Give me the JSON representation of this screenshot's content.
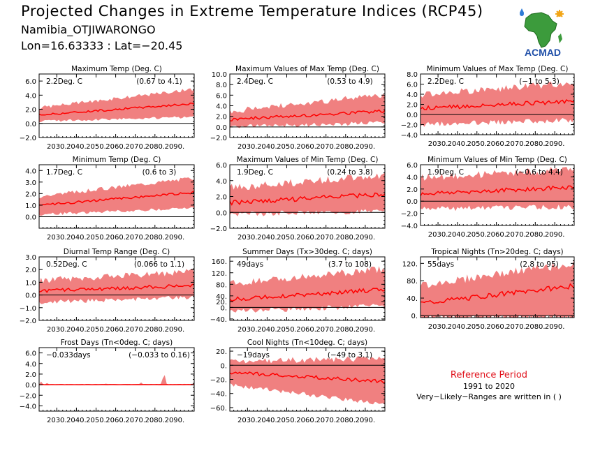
{
  "header": {
    "title": "Projected Changes in Extreme Temperature Indices (RCP45)",
    "station": "Namibia_OTJIWARONGO",
    "coords": "Lon=16.63333 : Lat=−20.45"
  },
  "logo": {
    "text": "ACMAD",
    "icon": "africa-map-logo-icon"
  },
  "reference": {
    "title": "Reference Period",
    "years": "1991 to 2020",
    "note": "Very−Likely−Ranges are written in ( )"
  },
  "colors": {
    "band": "#f08080",
    "line": "#ff0000",
    "zero": "#000000",
    "reference_title": "#e0101a"
  },
  "chart_data": [
    {
      "type": "area",
      "title": "Maximum Temp (Deg. C)",
      "stat": "2.2Deg. C",
      "range": "(0.67 to 4.1)",
      "x_start": 2021,
      "x_end": 2100,
      "xlim": [
        2021,
        2100
      ],
      "x_ticks": [
        2030,
        2040,
        2050,
        2060,
        2070,
        2080,
        2090
      ],
      "x_tick_labels": [
        "2030.",
        "2040.",
        "2050.",
        "2060.",
        "2070.",
        "2080.",
        "2090."
      ],
      "ylim": [
        -2,
        7
      ],
      "y_ticks": [
        -2,
        0,
        2,
        4,
        6
      ],
      "y_tick_labels": [
        "−2.0",
        "0.0",
        "2.0",
        "4.0",
        "6.0"
      ],
      "median_start": 1.2,
      "median_end": 2.8,
      "low_start": 0.5,
      "low_end": 1.1,
      "high_start": 2.0,
      "high_end": 4.6,
      "noise": 0.35
    },
    {
      "type": "area",
      "title": "Maximum Values of Max Temp (Deg. C)",
      "stat": "2.4Deg. C",
      "range": "(0.53 to 4.9)",
      "x_start": 2021,
      "x_end": 2100,
      "xlim": [
        2021,
        2100
      ],
      "x_ticks": [
        2030,
        2040,
        2050,
        2060,
        2070,
        2080,
        2090
      ],
      "x_tick_labels": [
        "2030.",
        "2040.",
        "2050.",
        "2060.",
        "2070.",
        "2080.",
        "2090."
      ],
      "ylim": [
        -2,
        10
      ],
      "y_ticks": [
        -2,
        0,
        2,
        4,
        6,
        8,
        10
      ],
      "y_tick_labels": [
        "−2.0",
        "0.0",
        "2.0",
        "4.0",
        "6.0",
        "8.0",
        "10.0"
      ],
      "median_start": 1.4,
      "median_end": 3.0,
      "low_start": 0.4,
      "low_end": 1.2,
      "high_start": 2.4,
      "high_end": 5.5,
      "noise": 0.8
    },
    {
      "type": "area",
      "title": "Minimum Values of Max Temp (Deg. C)",
      "stat": "2.2Deg. C",
      "range": "(−1 to 5.3)",
      "x_start": 2021,
      "x_end": 2100,
      "xlim": [
        2021,
        2100
      ],
      "x_ticks": [
        2030,
        2040,
        2050,
        2060,
        2070,
        2080,
        2090
      ],
      "x_tick_labels": [
        "2030.",
        "2040.",
        "2050.",
        "2060.",
        "2070.",
        "2080.",
        "2090."
      ],
      "ylim": [
        -4,
        8
      ],
      "y_ticks": [
        -4,
        -2,
        0,
        2,
        4,
        6,
        8
      ],
      "y_tick_labels": [
        "−4.0",
        "−2.0",
        "0.0",
        "2.0",
        "4.0",
        "6.0",
        "8.0"
      ],
      "median_start": 1.2,
      "median_end": 2.6,
      "low_start": -1.5,
      "low_end": -0.6,
      "high_start": 3.2,
      "high_end": 5.6,
      "noise": 1.0
    },
    {
      "type": "area",
      "title": "Minimum Temp (Deg. C)",
      "stat": "1.7Deg. C",
      "range": "(0.6 to 3)",
      "x_start": 2021,
      "x_end": 2100,
      "xlim": [
        2021,
        2100
      ],
      "x_ticks": [
        2030,
        2040,
        2050,
        2060,
        2070,
        2080,
        2090
      ],
      "x_tick_labels": [
        "2030.",
        "2040.",
        "2050.",
        "2060.",
        "2070.",
        "2080.",
        "2090."
      ],
      "ylim": [
        -1,
        4.5
      ],
      "y_ticks": [
        0,
        1,
        2,
        3,
        4
      ],
      "y_tick_labels": [
        "0.0",
        "1.0",
        "2.0",
        "3.0",
        "4.0"
      ],
      "median_start": 1.0,
      "median_end": 2.1,
      "low_start": 0.3,
      "low_end": 0.9,
      "high_start": 1.6,
      "high_end": 3.2,
      "noise": 0.25
    },
    {
      "type": "area",
      "title": "Maximum Values of Min Temp (Deg. C)",
      "stat": "1.9Deg. C",
      "range": "(0.24 to 3.8)",
      "x_start": 2021,
      "x_end": 2100,
      "xlim": [
        2021,
        2100
      ],
      "x_ticks": [
        2030,
        2040,
        2050,
        2060,
        2070,
        2080,
        2090
      ],
      "x_tick_labels": [
        "2030.",
        "2040.",
        "2050.",
        "2060.",
        "2070.",
        "2080.",
        "2090."
      ],
      "ylim": [
        -2,
        6
      ],
      "y_ticks": [
        -2,
        0,
        2,
        4,
        6
      ],
      "y_tick_labels": [
        "−2.0",
        "0.0",
        "2.0",
        "4.0",
        "6.0"
      ],
      "median_start": 1.2,
      "median_end": 2.3,
      "low_start": 0.1,
      "low_end": 0.5,
      "high_start": 2.6,
      "high_end": 4.2,
      "noise": 0.7
    },
    {
      "type": "area",
      "title": "Minimum Values of Min Temp (Deg. C)",
      "stat": "1.9Deg. C",
      "range": "(−0.6 to 4.4)",
      "x_start": 2021,
      "x_end": 2100,
      "xlim": [
        2021,
        2100
      ],
      "x_ticks": [
        2030,
        2040,
        2050,
        2060,
        2070,
        2080,
        2090
      ],
      "x_tick_labels": [
        "2030.",
        "2040.",
        "2050.",
        "2060.",
        "2070.",
        "2080.",
        "2090."
      ],
      "ylim": [
        -4,
        6
      ],
      "y_ticks": [
        -4,
        -2,
        0,
        2,
        4,
        6
      ],
      "y_tick_labels": [
        "−4.0",
        "−2.0",
        "0.0",
        "2.0",
        "4.0",
        "6.0"
      ],
      "median_start": 1.2,
      "median_end": 2.3,
      "low_start": -0.8,
      "low_end": -0.5,
      "high_start": 3.2,
      "high_end": 4.6,
      "noise": 0.9
    },
    {
      "type": "area",
      "title": "Diurnal Temp Range (Deg. C)",
      "stat": "0.52Deg. C",
      "range": "(0.066 to 1.1)",
      "x_start": 2021,
      "x_end": 2100,
      "xlim": [
        2021,
        2100
      ],
      "x_ticks": [
        2030,
        2040,
        2050,
        2060,
        2070,
        2080,
        2090
      ],
      "x_tick_labels": [
        "2030.",
        "2040.",
        "2050.",
        "2060.",
        "2070.",
        "2080.",
        "2090."
      ],
      "ylim": [
        -2,
        3
      ],
      "y_ticks": [
        -2,
        -1,
        0,
        1,
        2,
        3
      ],
      "y_tick_labels": [
        "−2.0",
        "−1.0",
        "0.0",
        "1.0",
        "2.0",
        "3.0"
      ],
      "median_start": 0.3,
      "median_end": 0.75,
      "low_start": -0.4,
      "low_end": 0.0,
      "high_start": 0.9,
      "high_end": 1.6,
      "noise": 0.35
    },
    {
      "type": "area",
      "title": "Summer Days (Tx>30deg. C; days)",
      "stat": "49days",
      "range": "(3.7 to 108)",
      "x_start": 2021,
      "x_end": 2100,
      "xlim": [
        2021,
        2100
      ],
      "x_ticks": [
        2030,
        2040,
        2050,
        2060,
        2070,
        2080,
        2090
      ],
      "x_tick_labels": [
        "2030.",
        "2040.",
        "2050.",
        "2060.",
        "2070.",
        "2080.",
        "2090."
      ],
      "ylim": [
        -45,
        175
      ],
      "y_ticks": [
        -40,
        0,
        20,
        40,
        80,
        120,
        160
      ],
      "y_tick_labels": [
        "−40.",
        "0.",
        "20.",
        "40.",
        "80.",
        "120.",
        "160."
      ],
      "median_start": 28,
      "median_end": 62,
      "low_start": -5,
      "low_end": 15,
      "high_start": 70,
      "high_end": 120,
      "noise": 18
    },
    {
      "type": "area",
      "title": "Tropical Nights (Tn>20deg. C; days)",
      "stat": "55days",
      "range": "(2.8 to 95)",
      "x_start": 2021,
      "x_end": 2100,
      "xlim": [
        2021,
        2100
      ],
      "x_ticks": [
        2030,
        2040,
        2050,
        2060,
        2070,
        2080,
        2090
      ],
      "x_tick_labels": [
        "2030.",
        "2040.",
        "2050.",
        "2060.",
        "2070.",
        "2080.",
        "2090."
      ],
      "ylim": [
        -5,
        135
      ],
      "y_ticks": [
        0,
        40,
        80,
        120
      ],
      "y_tick_labels": [
        "0.",
        "40.",
        "80.",
        "120."
      ],
      "median_start": 28,
      "median_end": 68,
      "low_start": 0,
      "low_end": 2,
      "high_start": 60,
      "high_end": 110,
      "noise": 14
    },
    {
      "type": "area",
      "title": "Frost Days (Tn<0deg. C; days)",
      "stat": "−0.033days",
      "range": "(−0.033 to 0.16)",
      "x_start": 2021,
      "x_end": 2100,
      "xlim": [
        2021,
        2100
      ],
      "x_ticks": [
        2030,
        2040,
        2050,
        2060,
        2070,
        2080,
        2090
      ],
      "x_tick_labels": [
        "2030.",
        "2040.",
        "2050.",
        "2060.",
        "2070.",
        "2080.",
        "2090."
      ],
      "ylim": [
        -5,
        7
      ],
      "y_ticks": [
        -4,
        -2,
        0,
        2,
        4,
        6
      ],
      "y_tick_labels": [
        "−4.0",
        "−2.0",
        "0.0",
        "2.0",
        "4.0",
        "6.0"
      ],
      "median_start": 0.0,
      "median_end": 0.0,
      "low_start": 0.0,
      "low_end": 0.0,
      "high_start": 0.05,
      "high_end": 0.1,
      "noise": 0.05,
      "spikes": [
        {
          "x": 2022,
          "v": 0.6
        },
        {
          "x": 2025,
          "v": 0.3
        },
        {
          "x": 2055,
          "v": 0.2
        },
        {
          "x": 2073,
          "v": 0.4
        },
        {
          "x": 2084,
          "v": 1.2
        },
        {
          "x": 2085,
          "v": 1.8
        }
      ]
    },
    {
      "type": "area",
      "title": "Cool Nights (Tn<10deg. C; days)",
      "stat": "−19days",
      "range": "(−49 to 3.1)",
      "x_start": 2021,
      "x_end": 2100,
      "xlim": [
        2021,
        2100
      ],
      "x_ticks": [
        2030,
        2040,
        2050,
        2060,
        2070,
        2080,
        2090
      ],
      "x_tick_labels": [
        "2030.",
        "2040.",
        "2050.",
        "2060.",
        "2070.",
        "2080.",
        "2090."
      ],
      "ylim": [
        -65,
        25
      ],
      "y_ticks": [
        -60,
        -40,
        -20,
        0,
        20
      ],
      "y_tick_labels": [
        "−60.",
        "−40.",
        "−20.",
        "0.",
        "20."
      ],
      "median_start": -10,
      "median_end": -23,
      "low_start": -25,
      "low_end": -52,
      "high_start": 2,
      "high_end": 5,
      "noise": 6
    }
  ]
}
